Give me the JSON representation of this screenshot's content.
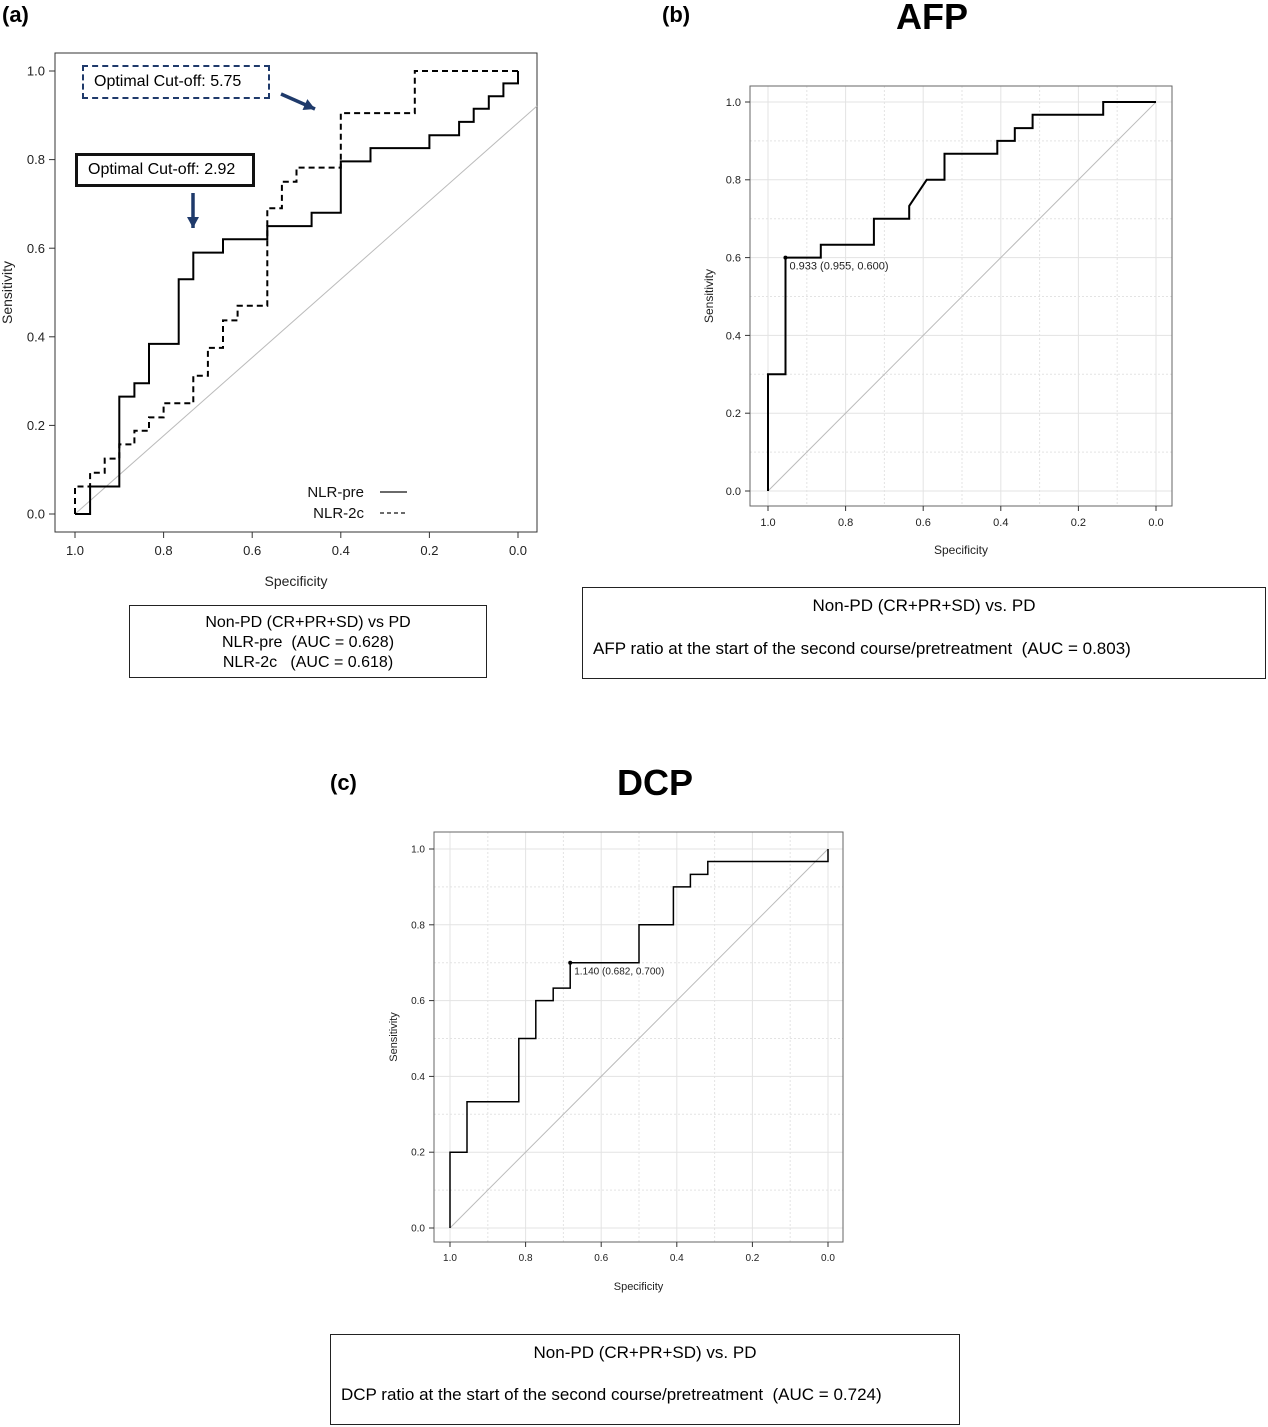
{
  "panels": {
    "a": {
      "letter": "(a)"
    },
    "b": {
      "letter": "(b)",
      "title": "AFP"
    },
    "c": {
      "letter": "(c)",
      "title": "DCP"
    }
  },
  "captions": {
    "a": {
      "line1": "Non-PD (CR+PR+SD) vs PD",
      "line2": "NLR-pre  (AUC = 0.628)",
      "line3": "NLR-2c   (AUC = 0.618)"
    },
    "b": {
      "line1": "Non-PD (CR+PR+SD) vs. PD",
      "line2": "AFP ratio at the start of the second course/pretreatment  (AUC = 0.803)"
    },
    "c": {
      "line1": "Non-PD (CR+PR+SD) vs. PD",
      "line2": "DCP ratio at the start of the second course/pretreatment  (AUC = 0.724)"
    }
  },
  "callouts": {
    "nlr_2c_cutoff": "Optimal Cut-off: 5.75",
    "nlr_pre_cutoff": "Optimal Cut-off: 2.92"
  },
  "colors": {
    "arrow": "#1f3a6b",
    "curve": "#000000",
    "diagonal": "#bbbbbb",
    "grid": "#e3e3e3"
  },
  "chart_data": [
    {
      "id": "a",
      "type": "line",
      "xlabel": "Specificity",
      "ylabel": "Sensitivity",
      "xlim": [
        1.0,
        0.0
      ],
      "ylim": [
        0.0,
        1.0
      ],
      "x_ticks": [
        "1.0",
        "0.8",
        "0.6",
        "0.4",
        "0.2",
        "0.0"
      ],
      "y_ticks": [
        "0.0",
        "0.2",
        "0.4",
        "0.6",
        "0.8",
        "1.0"
      ],
      "grid": false,
      "legend_position": "bottom-right",
      "series": [
        {
          "name": "NLR-pre",
          "style": "solid",
          "points": [
            [
              1.0,
              0.0
            ],
            [
              0.966,
              0.0
            ],
            [
              0.966,
              0.062
            ],
            [
              0.9,
              0.062
            ],
            [
              0.9,
              0.265
            ],
            [
              0.866,
              0.265
            ],
            [
              0.866,
              0.295
            ],
            [
              0.833,
              0.295
            ],
            [
              0.833,
              0.384
            ],
            [
              0.766,
              0.384
            ],
            [
              0.766,
              0.53
            ],
            [
              0.733,
              0.53
            ],
            [
              0.733,
              0.59
            ],
            [
              0.666,
              0.59
            ],
            [
              0.666,
              0.62
            ],
            [
              0.566,
              0.62
            ],
            [
              0.566,
              0.65
            ],
            [
              0.466,
              0.65
            ],
            [
              0.466,
              0.68
            ],
            [
              0.4,
              0.68
            ],
            [
              0.4,
              0.796
            ],
            [
              0.333,
              0.796
            ],
            [
              0.333,
              0.826
            ],
            [
              0.2,
              0.826
            ],
            [
              0.2,
              0.855
            ],
            [
              0.133,
              0.855
            ],
            [
              0.133,
              0.885
            ],
            [
              0.1,
              0.885
            ],
            [
              0.1,
              0.915
            ],
            [
              0.066,
              0.915
            ],
            [
              0.066,
              0.943
            ],
            [
              0.033,
              0.943
            ],
            [
              0.033,
              0.972
            ],
            [
              0.0,
              0.972
            ],
            [
              0.0,
              1.0
            ]
          ]
        },
        {
          "name": "NLR-2c",
          "style": "dashed",
          "points": [
            [
              1.0,
              0.0
            ],
            [
              1.0,
              0.062
            ],
            [
              0.966,
              0.062
            ],
            [
              0.966,
              0.093
            ],
            [
              0.933,
              0.093
            ],
            [
              0.933,
              0.125
            ],
            [
              0.9,
              0.125
            ],
            [
              0.9,
              0.157
            ],
            [
              0.866,
              0.157
            ],
            [
              0.866,
              0.188
            ],
            [
              0.833,
              0.188
            ],
            [
              0.833,
              0.218
            ],
            [
              0.8,
              0.218
            ],
            [
              0.8,
              0.25
            ],
            [
              0.733,
              0.25
            ],
            [
              0.733,
              0.312
            ],
            [
              0.7,
              0.312
            ],
            [
              0.7,
              0.375
            ],
            [
              0.666,
              0.375
            ],
            [
              0.666,
              0.437
            ],
            [
              0.633,
              0.437
            ],
            [
              0.633,
              0.47
            ],
            [
              0.566,
              0.47
            ],
            [
              0.566,
              0.69
            ],
            [
              0.533,
              0.69
            ],
            [
              0.533,
              0.75
            ],
            [
              0.5,
              0.75
            ],
            [
              0.5,
              0.782
            ],
            [
              0.4,
              0.782
            ],
            [
              0.4,
              0.905
            ],
            [
              0.233,
              0.905
            ],
            [
              0.233,
              1.0
            ],
            [
              0.0,
              1.0
            ]
          ]
        }
      ]
    },
    {
      "id": "b",
      "type": "line",
      "title": "AFP",
      "xlabel": "Specificity",
      "ylabel": "Sensitivity",
      "xlim": [
        1.0,
        0.0
      ],
      "ylim": [
        0.0,
        1.0
      ],
      "x_ticks": [
        "1.0",
        "0.8",
        "0.6",
        "0.4",
        "0.2",
        "0.0"
      ],
      "y_ticks": [
        "0.0",
        "0.2",
        "0.4",
        "0.6",
        "0.8",
        "1.0"
      ],
      "grid": true,
      "annotation": {
        "text": "0.933 (0.955, 0.600)",
        "x": 0.955,
        "y": 0.6
      },
      "series": [
        {
          "style": "solid",
          "points": [
            [
              1.0,
              0.0
            ],
            [
              1.0,
              0.3
            ],
            [
              0.955,
              0.3
            ],
            [
              0.955,
              0.6
            ],
            [
              0.864,
              0.6
            ],
            [
              0.864,
              0.633
            ],
            [
              0.727,
              0.633
            ],
            [
              0.727,
              0.7
            ],
            [
              0.636,
              0.7
            ],
            [
              0.636,
              0.733
            ],
            [
              0.591,
              0.8
            ],
            [
              0.545,
              0.8
            ],
            [
              0.545,
              0.867
            ],
            [
              0.409,
              0.867
            ],
            [
              0.409,
              0.9
            ],
            [
              0.364,
              0.9
            ],
            [
              0.364,
              0.933
            ],
            [
              0.318,
              0.933
            ],
            [
              0.318,
              0.967
            ],
            [
              0.136,
              0.967
            ],
            [
              0.136,
              1.0
            ],
            [
              0.0,
              1.0
            ]
          ]
        }
      ]
    },
    {
      "id": "c",
      "type": "line",
      "title": "DCP",
      "xlabel": "Specificity",
      "ylabel": "Sensitivity",
      "xlim": [
        1.0,
        0.0
      ],
      "ylim": [
        0.0,
        1.0
      ],
      "x_ticks": [
        "1.0",
        "0.8",
        "0.6",
        "0.4",
        "0.2",
        "0.0"
      ],
      "y_ticks": [
        "0.0",
        "0.2",
        "0.4",
        "0.6",
        "0.8",
        "1.0"
      ],
      "grid": true,
      "annotation": {
        "text": "1.140 (0.682, 0.700)",
        "x": 0.682,
        "y": 0.7
      },
      "series": [
        {
          "style": "solid",
          "points": [
            [
              1.0,
              0.0
            ],
            [
              1.0,
              0.2
            ],
            [
              0.955,
              0.2
            ],
            [
              0.955,
              0.333
            ],
            [
              0.818,
              0.333
            ],
            [
              0.818,
              0.5
            ],
            [
              0.773,
              0.5
            ],
            [
              0.773,
              0.6
            ],
            [
              0.727,
              0.6
            ],
            [
              0.727,
              0.633
            ],
            [
              0.682,
              0.633
            ],
            [
              0.682,
              0.7
            ],
            [
              0.5,
              0.7
            ],
            [
              0.5,
              0.8
            ],
            [
              0.409,
              0.8
            ],
            [
              0.409,
              0.9
            ],
            [
              0.364,
              0.9
            ],
            [
              0.364,
              0.933
            ],
            [
              0.318,
              0.933
            ],
            [
              0.318,
              0.967
            ],
            [
              0.0,
              0.967
            ],
            [
              0.0,
              1.0
            ]
          ]
        }
      ]
    }
  ]
}
